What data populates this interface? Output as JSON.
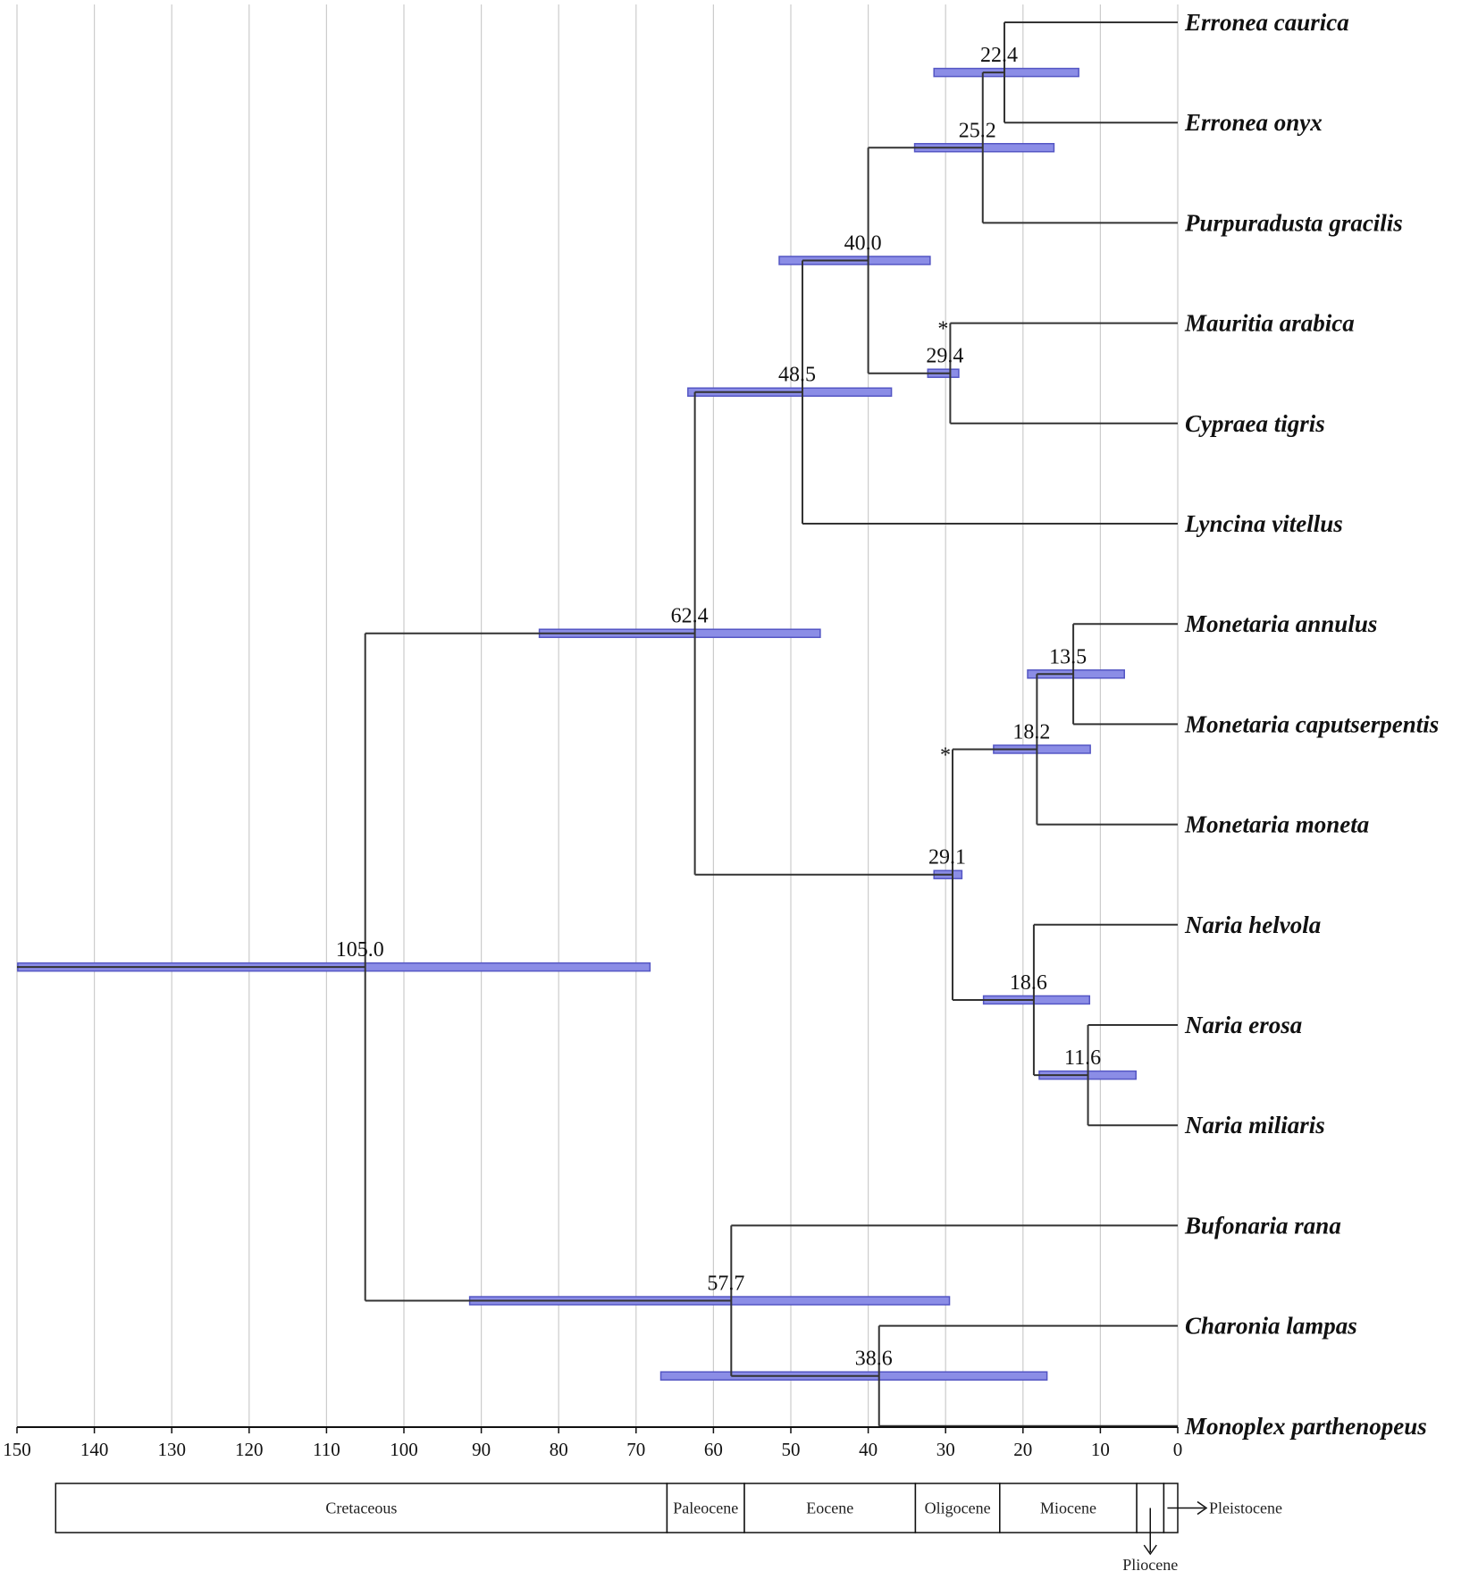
{
  "chart_data": {
    "type": "phylogenetic-timetree",
    "axis": {
      "range": [
        150,
        0
      ],
      "ticks": [
        150,
        140,
        130,
        120,
        110,
        100,
        90,
        80,
        70,
        60,
        50,
        40,
        30,
        20,
        10,
        0
      ],
      "grid": true
    },
    "taxa": [
      "Erronea caurica",
      "Erronea onyx",
      "Purpuradusta gracilis",
      "Mauritia arabica",
      "Cypraea tigris",
      "Lyncina vitellus",
      "Monetaria annulus",
      "Monetaria caputserpentis",
      "Monetaria moneta",
      "Naria helvola",
      "Naria erosa",
      "Naria miliaris",
      "Bufonaria rana",
      "Charonia lampas",
      "Monoplex parthenopeus"
    ],
    "nodes": [
      {
        "id": "n1",
        "age": 22.4,
        "label": "22.4",
        "ci": [
          31.5,
          12.8
        ],
        "children": [
          "t0",
          "t1"
        ]
      },
      {
        "id": "n2",
        "age": 25.2,
        "label": "25.2",
        "ci": [
          34.0,
          16.0
        ],
        "children": [
          "n1",
          "t2"
        ]
      },
      {
        "id": "n3",
        "age": 29.4,
        "label": "29.4",
        "ci": [
          32.3,
          28.3
        ],
        "children": [
          "t3",
          "t4"
        ],
        "star": "*"
      },
      {
        "id": "n4",
        "age": 40.0,
        "label": "40.0",
        "ci": [
          51.5,
          32.0
        ],
        "children": [
          "n2",
          "n3"
        ]
      },
      {
        "id": "n5",
        "age": 48.5,
        "label": "48.5",
        "ci": [
          63.3,
          37.0
        ],
        "children": [
          "n4",
          "t5"
        ]
      },
      {
        "id": "n6",
        "age": 13.5,
        "label": "13.5",
        "ci": [
          19.4,
          6.9
        ],
        "children": [
          "t6",
          "t7"
        ]
      },
      {
        "id": "n7",
        "age": 18.2,
        "label": "18.2",
        "ci": [
          23.8,
          11.3
        ],
        "children": [
          "n6",
          "t8"
        ]
      },
      {
        "id": "n8",
        "age": 11.6,
        "label": "11.6",
        "ci": [
          17.9,
          5.4
        ],
        "children": [
          "t10",
          "t11"
        ]
      },
      {
        "id": "n9",
        "age": 18.6,
        "label": "18.6",
        "ci": [
          25.1,
          11.4
        ],
        "children": [
          "t9",
          "n8"
        ]
      },
      {
        "id": "n10",
        "age": 29.1,
        "label": "29.1",
        "ci": [
          31.5,
          27.9
        ],
        "children": [
          "n7",
          "n9"
        ],
        "star": "*"
      },
      {
        "id": "n11",
        "age": 62.4,
        "label": "62.4",
        "ci": [
          82.5,
          46.2
        ],
        "children": [
          "n5",
          "n10"
        ]
      },
      {
        "id": "n12",
        "age": 38.6,
        "label": "38.6",
        "ci": [
          66.8,
          16.9
        ],
        "children": [
          "t13",
          "t14"
        ]
      },
      {
        "id": "n13",
        "age": 57.7,
        "label": "57.7",
        "ci": [
          91.5,
          29.5
        ],
        "children": [
          "t12",
          "n12"
        ]
      },
      {
        "id": "n14",
        "age": 105.0,
        "label": "105.0",
        "ci": [
          149.9,
          68.2
        ],
        "children": [
          "n11",
          "n13"
        ]
      }
    ],
    "periods": [
      {
        "name": "Cretaceous",
        "start": 145,
        "end": 66
      },
      {
        "name": "Paleocene",
        "start": 66,
        "end": 56
      },
      {
        "name": "Eocene",
        "start": 56,
        "end": 33.9
      },
      {
        "name": "Oligocene",
        "start": 33.9,
        "end": 23
      },
      {
        "name": "Miocene",
        "start": 23,
        "end": 5.3
      },
      {
        "name": "Pliocene",
        "start": 5.3,
        "end": 1.8
      },
      {
        "name": "Pleistocene",
        "start": 1.8,
        "end": 0
      }
    ],
    "colors": {
      "bar": "#8b8de6",
      "bar_border": "#5456c4",
      "branch": "#333333",
      "grid": "#cccccc"
    }
  }
}
